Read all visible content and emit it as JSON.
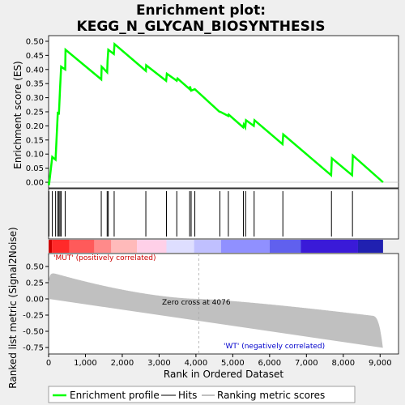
{
  "chart_data": {
    "type": "line",
    "title_line1": "Enrichment plot:",
    "title_line2": "KEGG_N_GLYCAN_BIOSYNTHESIS",
    "es_ylabel": "Enrichment score (ES)",
    "metric_ylabel": "Ranked list metric (Signal2Noise)",
    "xlabel": "Rank in Ordered Dataset",
    "es_ylim": [
      -0.02,
      0.52
    ],
    "es_yticks": [
      "0.00",
      "0.05",
      "0.10",
      "0.15",
      "0.20",
      "0.25",
      "0.30",
      "0.35",
      "0.40",
      "0.45",
      "0.50"
    ],
    "metric_ylim": [
      -0.85,
      0.7
    ],
    "metric_yticks": [
      "-0.75",
      "-0.50",
      "-0.25",
      "0.00",
      "0.25",
      "0.50"
    ],
    "xlim": [
      0,
      9500
    ],
    "xticks": [
      "0",
      "1,000",
      "2,000",
      "3,000",
      "4,000",
      "5,000",
      "6,000",
      "7,000",
      "8,000",
      "9,000"
    ],
    "n_genes": 9080,
    "hits": [
      10,
      100,
      190,
      250,
      280,
      310,
      340,
      450,
      1430,
      1590,
      1620,
      1780,
      2640,
      3200,
      3480,
      3830,
      3870,
      3970,
      4650,
      4880,
      5290,
      5350,
      5580,
      6360,
      7680,
      8250
    ],
    "es_profile": [
      [
        0,
        0
      ],
      [
        10,
        -0.01
      ],
      [
        100,
        0.09
      ],
      [
        190,
        0.08
      ],
      [
        250,
        0.25
      ],
      [
        280,
        0.24
      ],
      [
        310,
        0.33
      ],
      [
        340,
        0.41
      ],
      [
        450,
        0.4
      ],
      [
        460,
        0.47
      ],
      [
        1430,
        0.365
      ],
      [
        1440,
        0.41
      ],
      [
        1590,
        0.39
      ],
      [
        1600,
        0.43
      ],
      [
        1620,
        0.47
      ],
      [
        1770,
        0.455
      ],
      [
        1790,
        0.49
      ],
      [
        2640,
        0.395
      ],
      [
        2650,
        0.415
      ],
      [
        3190,
        0.36
      ],
      [
        3210,
        0.385
      ],
      [
        3480,
        0.36
      ],
      [
        3500,
        0.368
      ],
      [
        3830,
        0.33
      ],
      [
        3840,
        0.34
      ],
      [
        3870,
        0.325
      ],
      [
        3970,
        0.33
      ],
      [
        4640,
        0.25
      ],
      [
        4660,
        0.25
      ],
      [
        4880,
        0.235
      ],
      [
        4890,
        0.24
      ],
      [
        5280,
        0.195
      ],
      [
        5300,
        0.205
      ],
      [
        5340,
        0.195
      ],
      [
        5360,
        0.22
      ],
      [
        5570,
        0.2
      ],
      [
        5590,
        0.22
      ],
      [
        6350,
        0.135
      ],
      [
        6370,
        0.17
      ],
      [
        7670,
        0.025
      ],
      [
        7690,
        0.085
      ],
      [
        8240,
        0.025
      ],
      [
        8260,
        0.095
      ],
      [
        9080,
        0
      ]
    ],
    "zero_cross_label": "Zero cross at 4076",
    "zero_cross": 4076,
    "pos_label": "'MUT' (positively correlated)",
    "neg_label": "'WT' (negatively correlated)",
    "legend": [
      "Enrichment profile",
      "Hits",
      "Ranking metric scores"
    ],
    "colors": {
      "es_line": "#00ff00",
      "hits": "#000000",
      "metric": "#c0c0c0",
      "pos_text": "#cc0000",
      "neg_text": "#0000cc"
    },
    "heatmap_colors": [
      "#cc0000",
      "#ff2a2a",
      "#ff5a5a",
      "#ff8a8a",
      "#ffbaba",
      "#ffd0e8",
      "#dedeff",
      "#c0c0ff",
      "#9090ff",
      "#6060ee",
      "#3a1ad8",
      "#2020b0"
    ],
    "heatmap_breaks": [
      0,
      90,
      560,
      1240,
      1700,
      2400,
      3200,
      3950,
      4680,
      6000,
      6850,
      8400,
      9080
    ]
  }
}
